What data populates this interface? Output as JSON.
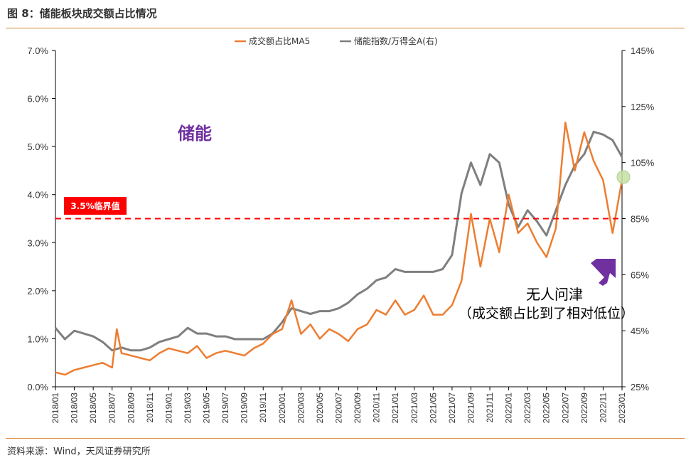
{
  "figure": {
    "title": "图 8：储能板块成交额占比情况",
    "source": "资料来源：Wind，天风证券研究所"
  },
  "colors": {
    "ratio_line": "#ed7d31",
    "index_line": "#7f7f7f",
    "threshold": "#ff0000",
    "threshold_label_bg": "#ff0000",
    "sector_label": "#7030a0",
    "arrow": "#7030a0",
    "marker": "#c5e0a5"
  },
  "chart_data": {
    "type": "line",
    "title": "",
    "xlabel": "",
    "ylabel": "",
    "x_ticks": [
      "2018/01",
      "2018/03",
      "2018/05",
      "2018/07",
      "2018/09",
      "2018/11",
      "2019/01",
      "2019/03",
      "2019/05",
      "2019/07",
      "2019/09",
      "2019/11",
      "2020/01",
      "2020/03",
      "2020/05",
      "2020/07",
      "2020/09",
      "2020/11",
      "2021/01",
      "2021/03",
      "2021/05",
      "2021/07",
      "2021/09",
      "2021/11",
      "2022/01",
      "2022/03",
      "2022/05",
      "2022/07",
      "2022/09",
      "2022/11",
      "2023/01"
    ],
    "x_range": [
      "2018/01",
      "2023/01"
    ],
    "y_left": {
      "ylim": [
        0,
        7
      ],
      "ticks": [
        "0.0%",
        "1.0%",
        "2.0%",
        "3.0%",
        "4.0%",
        "5.0%",
        "6.0%",
        "7.0%"
      ]
    },
    "y_right": {
      "ylim": [
        25,
        145
      ],
      "ticks": [
        "25%",
        "45%",
        "65%",
        "85%",
        "105%",
        "125%",
        "145%"
      ]
    },
    "legend_position": "top-center",
    "series": [
      {
        "name": "成交额占比MA5",
        "axis": "left",
        "unit": "%",
        "x": [
          "2018/01",
          "2018/02",
          "2018/03",
          "2018/04",
          "2018/05",
          "2018/06",
          "2018/07",
          "2018/07",
          "2018/08",
          "2018/09",
          "2018/10",
          "2018/11",
          "2018/12",
          "2019/01",
          "2019/02",
          "2019/03",
          "2019/04",
          "2019/05",
          "2019/06",
          "2019/07",
          "2019/08",
          "2019/09",
          "2019/10",
          "2019/11",
          "2019/12",
          "2020/01",
          "2020/02",
          "2020/03",
          "2020/04",
          "2020/05",
          "2020/06",
          "2020/07",
          "2020/08",
          "2020/09",
          "2020/10",
          "2020/11",
          "2020/12",
          "2021/01",
          "2021/02",
          "2021/03",
          "2021/04",
          "2021/05",
          "2021/06",
          "2021/07",
          "2021/08",
          "2021/09",
          "2021/10",
          "2021/11",
          "2021/12",
          "2022/01",
          "2022/02",
          "2022/03",
          "2022/04",
          "2022/05",
          "2022/06",
          "2022/07",
          "2022/08",
          "2022/09",
          "2022/10",
          "2022/11",
          "2022/12",
          "2023/01"
        ],
        "values": [
          0.3,
          0.25,
          0.35,
          0.4,
          0.45,
          0.5,
          0.4,
          1.2,
          0.7,
          0.65,
          0.6,
          0.55,
          0.7,
          0.8,
          0.75,
          0.7,
          0.85,
          0.6,
          0.7,
          0.75,
          0.7,
          0.65,
          0.8,
          0.9,
          1.1,
          1.2,
          1.8,
          1.1,
          1.3,
          1.0,
          1.2,
          1.1,
          0.95,
          1.2,
          1.3,
          1.6,
          1.5,
          1.8,
          1.5,
          1.6,
          1.9,
          1.5,
          1.5,
          1.7,
          2.2,
          3.6,
          2.5,
          3.5,
          2.8,
          4.0,
          3.2,
          3.4,
          3.0,
          2.7,
          3.3,
          5.5,
          4.5,
          5.3,
          4.7,
          4.3,
          3.2,
          4.3
        ]
      },
      {
        "name": "储能指数/万得全A(右)",
        "axis": "right",
        "unit": "%",
        "x": [
          "2018/01",
          "2018/02",
          "2018/03",
          "2018/04",
          "2018/05",
          "2018/06",
          "2018/07",
          "2018/08",
          "2018/09",
          "2018/10",
          "2018/11",
          "2018/12",
          "2019/01",
          "2019/02",
          "2019/03",
          "2019/04",
          "2019/05",
          "2019/06",
          "2019/07",
          "2019/08",
          "2019/09",
          "2019/10",
          "2019/11",
          "2019/12",
          "2020/01",
          "2020/02",
          "2020/03",
          "2020/04",
          "2020/05",
          "2020/06",
          "2020/07",
          "2020/08",
          "2020/09",
          "2020/10",
          "2020/11",
          "2020/12",
          "2021/01",
          "2021/02",
          "2021/03",
          "2021/04",
          "2021/05",
          "2021/06",
          "2021/07",
          "2021/08",
          "2021/09",
          "2021/10",
          "2021/11",
          "2021/12",
          "2022/01",
          "2022/02",
          "2022/03",
          "2022/04",
          "2022/05",
          "2022/06",
          "2022/07",
          "2022/08",
          "2022/09",
          "2022/10",
          "2022/11",
          "2022/12",
          "2023/01"
        ],
        "values": [
          46,
          42,
          45,
          44,
          43,
          41,
          38,
          39,
          38,
          38,
          39,
          41,
          42,
          43,
          46,
          44,
          44,
          43,
          43,
          42,
          42,
          42,
          42,
          44,
          48,
          53,
          52,
          51,
          52,
          52,
          53,
          55,
          58,
          60,
          63,
          64,
          67,
          66,
          66,
          66,
          66,
          67,
          72,
          94,
          105,
          97,
          108,
          105,
          90,
          82,
          88,
          84,
          79,
          88,
          97,
          104,
          108,
          116,
          115,
          113,
          107
        ]
      }
    ],
    "threshold": {
      "value": 3.5,
      "axis": "left",
      "label": "3.5%临界值"
    }
  },
  "annotations": {
    "sector_label": "储能",
    "note_line1": "无人问津",
    "note_line2": "（成交额占比到了相对低位）"
  }
}
